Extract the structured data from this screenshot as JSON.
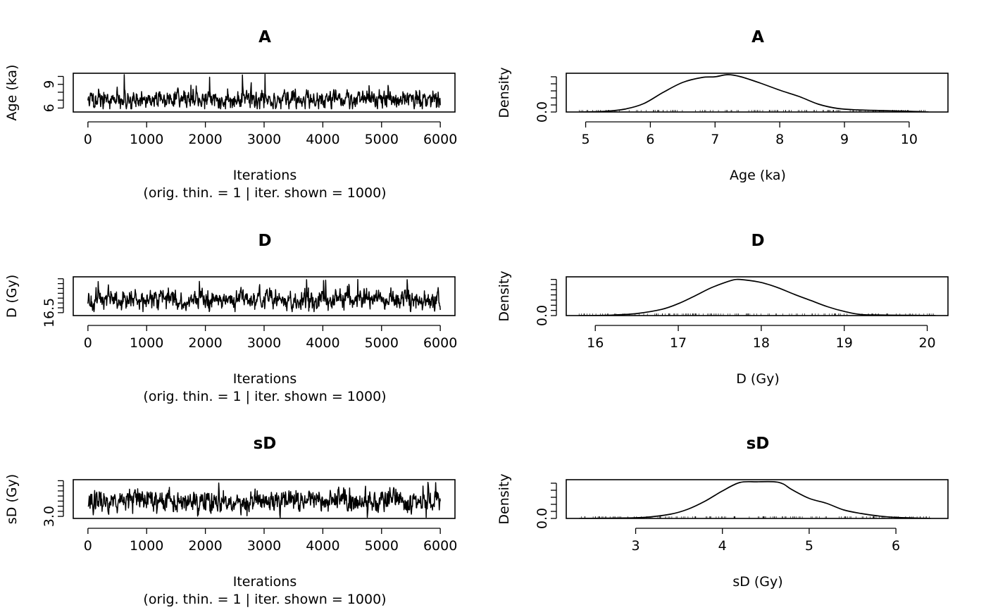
{
  "chart_data": [
    {
      "type": "line",
      "title": "A",
      "xlabel": "Iterations",
      "xlabel_sub": "(orig. thin. = 1 | iter. shown = 1000)",
      "ylabel": "Age (ka)",
      "xlim": [
        -250,
        6250
      ],
      "ylim": [
        5.5,
        10.4
      ],
      "xticks": [
        0,
        1000,
        2000,
        3000,
        4000,
        5000,
        6000
      ],
      "yticks": [
        6,
        7,
        8,
        9,
        10
      ],
      "ytick_labels": [
        "6",
        "",
        "",
        "9",
        ""
      ],
      "series": [
        {
          "x_range": [
            0,
            6000
          ],
          "n_points": 1000,
          "mean": 7.1,
          "sd": 0.6,
          "min": 5.9,
          "max": 10.3,
          "seed": 11
        }
      ]
    },
    {
      "type": "line",
      "title": "A",
      "xlabel": "Age (ka)",
      "ylabel": "Density",
      "xlim": [
        4.7,
        10.6
      ],
      "ylim": [
        0,
        0.55
      ],
      "xticks": [
        5,
        6,
        7,
        8,
        9,
        10
      ],
      "yticks": [
        0,
        0.1,
        0.2,
        0.3,
        0.4,
        0.5
      ],
      "ytick_labels": [
        "0.0",
        "",
        "",
        "",
        "",
        ""
      ],
      "series": [
        {
          "x": [
            4.9,
            5.3,
            5.6,
            5.9,
            6.2,
            6.5,
            6.8,
            7.0,
            7.2,
            7.4,
            7.7,
            8.0,
            8.3,
            8.6,
            8.9,
            9.2,
            9.6,
            10.0,
            10.3
          ],
          "y": [
            0.0,
            0.01,
            0.04,
            0.12,
            0.28,
            0.42,
            0.49,
            0.5,
            0.53,
            0.5,
            0.41,
            0.31,
            0.22,
            0.11,
            0.05,
            0.03,
            0.02,
            0.01,
            0.0
          ]
        }
      ]
    },
    {
      "type": "line",
      "title": "D",
      "xlabel": "Iterations",
      "xlabel_sub": "(orig. thin. = 1 | iter. shown = 1000)",
      "ylabel": "D (Gy)",
      "xlim": [
        -250,
        6250
      ],
      "ylim": [
        16.2,
        20.2
      ],
      "xticks": [
        0,
        1000,
        2000,
        3000,
        4000,
        5000,
        6000
      ],
      "yticks": [
        16.5,
        17,
        17.5,
        18,
        18.5,
        19,
        19.5,
        20
      ],
      "ytick_labels": [
        "16.5",
        "",
        "",
        "",
        "",
        "",
        "",
        ""
      ],
      "series": [
        {
          "x_range": [
            0,
            6000
          ],
          "n_points": 1000,
          "mean": 17.9,
          "sd": 0.5,
          "min": 16.6,
          "max": 20.0,
          "seed": 23
        }
      ]
    },
    {
      "type": "line",
      "title": "D",
      "xlabel": "D (Gy)",
      "ylabel": "Density",
      "xlim": [
        15.65,
        20.25
      ],
      "ylim": [
        0,
        0.75
      ],
      "xticks": [
        16,
        17,
        18,
        19,
        20
      ],
      "yticks": [
        0,
        0.1,
        0.2,
        0.3,
        0.4,
        0.5,
        0.6,
        0.7
      ],
      "ytick_labels": [
        "0.0",
        "",
        "",
        "",
        "",
        "",
        "",
        ""
      ],
      "series": [
        {
          "x": [
            15.8,
            16.2,
            16.5,
            16.8,
            17.0,
            17.2,
            17.4,
            17.6,
            17.7,
            17.8,
            18.0,
            18.2,
            18.4,
            18.6,
            18.8,
            19.0,
            19.2,
            19.5,
            20.1
          ],
          "y": [
            0.0,
            0.01,
            0.04,
            0.12,
            0.23,
            0.38,
            0.54,
            0.66,
            0.7,
            0.69,
            0.64,
            0.54,
            0.41,
            0.29,
            0.17,
            0.08,
            0.02,
            0.01,
            0.0
          ]
        }
      ]
    },
    {
      "type": "line",
      "title": "sD",
      "xlabel": "Iterations",
      "xlabel_sub": "(orig. thin. = 1 | iter. shown = 1000)",
      "ylabel": "sD (Gy)",
      "xlim": [
        -250,
        6250
      ],
      "ylim": [
        2.8,
        6.6
      ],
      "xticks": [
        0,
        1000,
        2000,
        3000,
        4000,
        5000,
        6000
      ],
      "yticks": [
        3,
        3.5,
        4,
        4.5,
        5,
        5.5,
        6,
        6.5
      ],
      "ytick_labels": [
        "3.0",
        "",
        "",
        "",
        "",
        "",
        "",
        ""
      ],
      "series": [
        {
          "x_range": [
            0,
            6000
          ],
          "n_points": 1000,
          "mean": 4.5,
          "sd": 0.55,
          "min": 2.9,
          "max": 6.4,
          "seed": 37
        }
      ]
    },
    {
      "type": "line",
      "title": "sD",
      "xlabel": "sD (Gy)",
      "ylabel": "Density",
      "xlim": [
        2.2,
        6.6
      ],
      "ylim": [
        0,
        1.1
      ],
      "xticks": [
        3,
        4,
        5,
        6
      ],
      "yticks": [
        0,
        0.2,
        0.4,
        0.6,
        0.8,
        1.0
      ],
      "ytick_labels": [
        "0.0",
        "",
        "",
        "",
        "",
        ""
      ],
      "series": [
        {
          "x": [
            2.35,
            2.8,
            3.1,
            3.4,
            3.6,
            3.8,
            4.0,
            4.2,
            4.4,
            4.6,
            4.7,
            4.8,
            5.0,
            5.2,
            5.4,
            5.6,
            5.8,
            6.0,
            6.4
          ],
          "y": [
            0.0,
            0.01,
            0.03,
            0.12,
            0.26,
            0.49,
            0.78,
            1.02,
            1.04,
            1.04,
            0.98,
            0.82,
            0.57,
            0.43,
            0.24,
            0.14,
            0.07,
            0.03,
            0.0
          ]
        }
      ]
    }
  ]
}
